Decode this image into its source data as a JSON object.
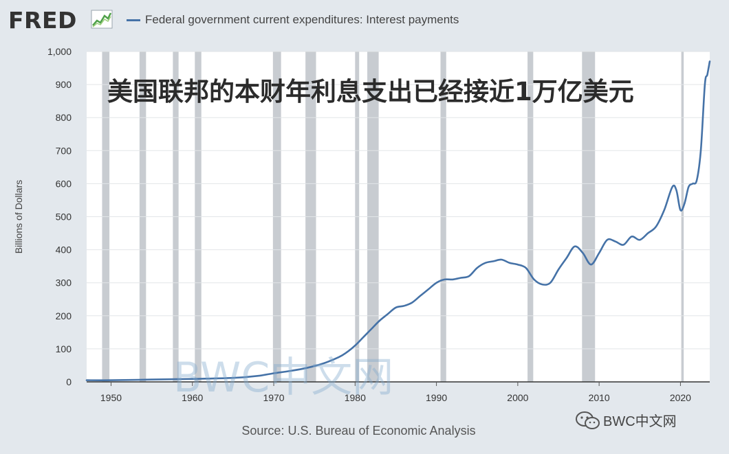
{
  "header": {
    "logo_text": "FRED",
    "logo_icon": "line-chart-icon",
    "legend_label": "Federal government current expenditures: Interest payments"
  },
  "overlay_text": "美国联邦的本财年利息支出已经接近1万亿美元",
  "watermark_text": "BWC中文网",
  "source_text": "Source: U.S. Bureau of Economic Analysis",
  "wechat": {
    "icon": "wechat-icon",
    "label": "BWC中文网"
  },
  "colors": {
    "series": "#4572a7",
    "recession": "#c8ccd1",
    "background": "#e3e8ed",
    "plot": "#ffffff"
  },
  "chart_data": {
    "type": "line",
    "title": "",
    "xlabel": "",
    "ylabel": "Billions of Dollars",
    "xlim": [
      1947,
      2023.6
    ],
    "ylim": [
      0,
      1000
    ],
    "x_ticks": [
      1950,
      1960,
      1970,
      1980,
      1990,
      2000,
      2010,
      2020
    ],
    "y_ticks": [
      0,
      100,
      200,
      300,
      400,
      500,
      600,
      700,
      800,
      900,
      1000
    ],
    "y_tick_labels": [
      "0",
      "100",
      "200",
      "300",
      "400",
      "500",
      "600",
      "700",
      "800",
      "900",
      "1,000"
    ],
    "grid": true,
    "legend": "top-left",
    "recessions": [
      [
        1948.9,
        1949.8
      ],
      [
        1953.5,
        1954.3
      ],
      [
        1957.6,
        1958.3
      ],
      [
        1960.3,
        1961.1
      ],
      [
        1969.9,
        1970.9
      ],
      [
        1973.9,
        1975.2
      ],
      [
        1980.0,
        1980.5
      ],
      [
        1981.5,
        1982.9
      ],
      [
        1990.5,
        1991.2
      ],
      [
        2001.2,
        2001.9
      ],
      [
        2007.9,
        2009.5
      ],
      [
        2020.1,
        2020.4
      ]
    ],
    "series": [
      {
        "name": "Federal government current expenditures: Interest payments",
        "x": [
          1947,
          1950,
          1955,
          1960,
          1965,
          1968,
          1970,
          1972,
          1974,
          1976,
          1978,
          1979,
          1980,
          1981,
          1982,
          1983,
          1984,
          1985,
          1986,
          1987,
          1988,
          1989,
          1990,
          1991,
          1992,
          1993,
          1994,
          1995,
          1996,
          1997,
          1998,
          1999,
          2000,
          2001,
          2002,
          2003,
          2004,
          2005,
          2006,
          2007,
          2008,
          2009,
          2010,
          2011,
          2012,
          2013,
          2014,
          2015,
          2016,
          2017,
          2018,
          2019,
          2019.5,
          2020,
          2020.5,
          2021,
          2021.5,
          2022,
          2022.5,
          2023,
          2023.3,
          2023.6
        ],
        "values": [
          5,
          5,
          7,
          9,
          12,
          18,
          26,
          33,
          42,
          55,
          75,
          90,
          110,
          135,
          160,
          185,
          205,
          225,
          230,
          240,
          260,
          280,
          300,
          310,
          310,
          315,
          320,
          345,
          360,
          365,
          370,
          360,
          355,
          345,
          310,
          295,
          300,
          340,
          375,
          410,
          390,
          355,
          390,
          430,
          425,
          415,
          440,
          430,
          450,
          470,
          520,
          590,
          580,
          520,
          540,
          590,
          600,
          610,
          700,
          900,
          930,
          970
        ]
      }
    ]
  }
}
